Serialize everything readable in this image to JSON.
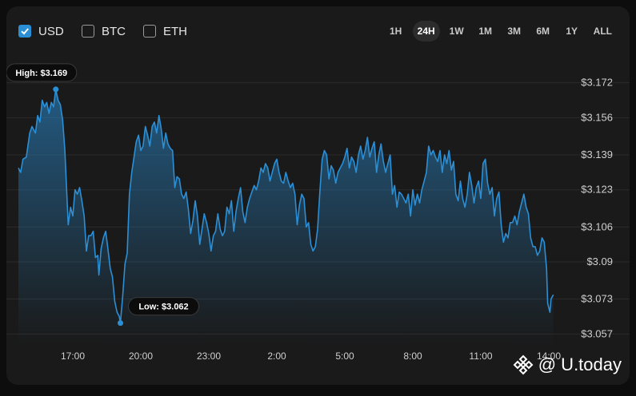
{
  "currency_toggles": [
    {
      "label": "USD",
      "checked": true
    },
    {
      "label": "BTC",
      "checked": false
    },
    {
      "label": "ETH",
      "checked": false
    }
  ],
  "timeframes": [
    "1H",
    "24H",
    "1W",
    "1M",
    "3M",
    "6M",
    "1Y",
    "ALL"
  ],
  "active_timeframe": "24H",
  "watermark": {
    "text": "@ U.today",
    "icon": "binance-logo-icon"
  },
  "colors": {
    "line": "#2b8fd6",
    "checkbox": "#2b8fd6"
  },
  "chart_data": {
    "type": "area",
    "ylim": [
      3.052,
      3.177
    ],
    "y_ticks": [
      "3.172",
      "3.156",
      "3.139",
      "3.123",
      "3.106",
      "3.09",
      "3.073",
      "3.057"
    ],
    "y_tick_values": [
      3.172,
      3.156,
      3.139,
      3.123,
      3.106,
      3.09,
      3.073,
      3.057
    ],
    "y_tick_prefix": "$",
    "x_ticks": [
      "17:00",
      "20:00",
      "23:00",
      "2:00",
      "5:00",
      "8:00",
      "11:00",
      "14:00"
    ],
    "x_tick_hours": [
      2.4,
      5.4,
      8.4,
      11.4,
      14.4,
      17.4,
      20.4,
      23.4
    ],
    "xlim": [
      0,
      24
    ],
    "series": [
      {
        "values": [
          [
            0.0,
            3.133
          ],
          [
            0.1,
            3.131
          ],
          [
            0.2,
            3.137
          ],
          [
            0.35,
            3.138
          ],
          [
            0.5,
            3.149
          ],
          [
            0.6,
            3.152
          ],
          [
            0.75,
            3.149
          ],
          [
            0.85,
            3.157
          ],
          [
            0.95,
            3.154
          ],
          [
            1.05,
            3.164
          ],
          [
            1.15,
            3.161
          ],
          [
            1.25,
            3.163
          ],
          [
            1.35,
            3.158
          ],
          [
            1.45,
            3.163
          ],
          [
            1.55,
            3.161
          ],
          [
            1.65,
            3.169
          ],
          [
            1.75,
            3.164
          ],
          [
            1.85,
            3.162
          ],
          [
            1.95,
            3.155
          ],
          [
            2.05,
            3.141
          ],
          [
            2.15,
            3.118
          ],
          [
            2.2,
            3.107
          ],
          [
            2.3,
            3.115
          ],
          [
            2.4,
            3.111
          ],
          [
            2.5,
            3.123
          ],
          [
            2.6,
            3.121
          ],
          [
            2.7,
            3.124
          ],
          [
            2.8,
            3.118
          ],
          [
            2.9,
            3.111
          ],
          [
            3.0,
            3.095
          ],
          [
            3.1,
            3.102
          ],
          [
            3.2,
            3.102
          ],
          [
            3.3,
            3.104
          ],
          [
            3.4,
            3.092
          ],
          [
            3.5,
            3.093
          ],
          [
            3.55,
            3.084
          ],
          [
            3.65,
            3.096
          ],
          [
            3.75,
            3.101
          ],
          [
            3.85,
            3.104
          ],
          [
            3.95,
            3.096
          ],
          [
            4.05,
            3.087
          ],
          [
            4.15,
            3.083
          ],
          [
            4.25,
            3.072
          ],
          [
            4.35,
            3.067
          ],
          [
            4.45,
            3.065
          ],
          [
            4.5,
            3.062
          ],
          [
            4.6,
            3.074
          ],
          [
            4.7,
            3.089
          ],
          [
            4.8,
            3.094
          ],
          [
            4.9,
            3.121
          ],
          [
            5.0,
            3.131
          ],
          [
            5.1,
            3.138
          ],
          [
            5.2,
            3.145
          ],
          [
            5.3,
            3.148
          ],
          [
            5.4,
            3.141
          ],
          [
            5.5,
            3.143
          ],
          [
            5.6,
            3.152
          ],
          [
            5.7,
            3.148
          ],
          [
            5.8,
            3.143
          ],
          [
            5.9,
            3.152
          ],
          [
            6.0,
            3.154
          ],
          [
            6.1,
            3.149
          ],
          [
            6.2,
            3.157
          ],
          [
            6.3,
            3.151
          ],
          [
            6.4,
            3.142
          ],
          [
            6.5,
            3.149
          ],
          [
            6.6,
            3.144
          ],
          [
            6.7,
            3.142
          ],
          [
            6.8,
            3.141
          ],
          [
            6.9,
            3.124
          ],
          [
            7.0,
            3.129
          ],
          [
            7.1,
            3.128
          ],
          [
            7.2,
            3.121
          ],
          [
            7.3,
            3.119
          ],
          [
            7.4,
            3.122
          ],
          [
            7.5,
            3.114
          ],
          [
            7.6,
            3.103
          ],
          [
            7.7,
            3.109
          ],
          [
            7.8,
            3.118
          ],
          [
            7.9,
            3.111
          ],
          [
            8.0,
            3.098
          ],
          [
            8.1,
            3.105
          ],
          [
            8.2,
            3.112
          ],
          [
            8.3,
            3.108
          ],
          [
            8.4,
            3.103
          ],
          [
            8.5,
            3.095
          ],
          [
            8.6,
            3.102
          ],
          [
            8.7,
            3.104
          ],
          [
            8.8,
            3.112
          ],
          [
            8.9,
            3.105
          ],
          [
            9.0,
            3.102
          ],
          [
            9.1,
            3.104
          ],
          [
            9.2,
            3.115
          ],
          [
            9.3,
            3.112
          ],
          [
            9.4,
            3.118
          ],
          [
            9.5,
            3.104
          ],
          [
            9.6,
            3.113
          ],
          [
            9.7,
            3.119
          ],
          [
            9.8,
            3.124
          ],
          [
            9.9,
            3.113
          ],
          [
            10.0,
            3.108
          ],
          [
            10.1,
            3.115
          ],
          [
            10.2,
            3.119
          ],
          [
            10.3,
            3.122
          ],
          [
            10.4,
            3.125
          ],
          [
            10.5,
            3.123
          ],
          [
            10.6,
            3.127
          ],
          [
            10.7,
            3.133
          ],
          [
            10.8,
            3.131
          ],
          [
            10.9,
            3.135
          ],
          [
            11.0,
            3.133
          ],
          [
            11.1,
            3.127
          ],
          [
            11.2,
            3.131
          ],
          [
            11.3,
            3.135
          ],
          [
            11.4,
            3.137
          ],
          [
            11.5,
            3.131
          ],
          [
            11.6,
            3.127
          ],
          [
            11.7,
            3.126
          ],
          [
            11.8,
            3.131
          ],
          [
            11.9,
            3.127
          ],
          [
            12.0,
            3.124
          ],
          [
            12.1,
            3.126
          ],
          [
            12.2,
            3.121
          ],
          [
            12.3,
            3.107
          ],
          [
            12.4,
            3.116
          ],
          [
            12.5,
            3.121
          ],
          [
            12.6,
            3.119
          ],
          [
            12.7,
            3.106
          ],
          [
            12.8,
            3.108
          ],
          [
            12.9,
            3.098
          ],
          [
            13.0,
            3.095
          ],
          [
            13.1,
            3.097
          ],
          [
            13.2,
            3.105
          ],
          [
            13.3,
            3.122
          ],
          [
            13.4,
            3.137
          ],
          [
            13.5,
            3.141
          ],
          [
            13.6,
            3.139
          ],
          [
            13.7,
            3.128
          ],
          [
            13.8,
            3.134
          ],
          [
            13.9,
            3.132
          ],
          [
            14.0,
            3.126
          ],
          [
            14.1,
            3.131
          ],
          [
            14.2,
            3.133
          ],
          [
            14.3,
            3.135
          ],
          [
            14.4,
            3.138
          ],
          [
            14.5,
            3.142
          ],
          [
            14.6,
            3.133
          ],
          [
            14.7,
            3.138
          ],
          [
            14.8,
            3.136
          ],
          [
            14.9,
            3.131
          ],
          [
            15.0,
            3.139
          ],
          [
            15.1,
            3.143
          ],
          [
            15.2,
            3.137
          ],
          [
            15.3,
            3.141
          ],
          [
            15.4,
            3.147
          ],
          [
            15.5,
            3.138
          ],
          [
            15.6,
            3.142
          ],
          [
            15.7,
            3.145
          ],
          [
            15.8,
            3.131
          ],
          [
            15.9,
            3.139
          ],
          [
            16.0,
            3.144
          ],
          [
            16.1,
            3.136
          ],
          [
            16.2,
            3.131
          ],
          [
            16.3,
            3.135
          ],
          [
            16.4,
            3.139
          ],
          [
            16.5,
            3.121
          ],
          [
            16.6,
            3.125
          ],
          [
            16.7,
            3.115
          ],
          [
            16.8,
            3.122
          ],
          [
            16.9,
            3.121
          ],
          [
            17.0,
            3.119
          ],
          [
            17.1,
            3.117
          ],
          [
            17.2,
            3.121
          ],
          [
            17.3,
            3.111
          ],
          [
            17.4,
            3.123
          ],
          [
            17.5,
            3.116
          ],
          [
            17.6,
            3.121
          ],
          [
            17.7,
            3.117
          ],
          [
            17.8,
            3.123
          ],
          [
            17.9,
            3.127
          ],
          [
            18.0,
            3.131
          ],
          [
            18.1,
            3.143
          ],
          [
            18.2,
            3.139
          ],
          [
            18.3,
            3.141
          ],
          [
            18.4,
            3.138
          ],
          [
            18.5,
            3.136
          ],
          [
            18.6,
            3.141
          ],
          [
            18.7,
            3.131
          ],
          [
            18.8,
            3.139
          ],
          [
            18.9,
            3.135
          ],
          [
            19.0,
            3.141
          ],
          [
            19.1,
            3.132
          ],
          [
            19.2,
            3.136
          ],
          [
            19.3,
            3.121
          ],
          [
            19.4,
            3.118
          ],
          [
            19.5,
            3.127
          ],
          [
            19.6,
            3.119
          ],
          [
            19.7,
            3.115
          ],
          [
            19.8,
            3.121
          ],
          [
            19.9,
            3.131
          ],
          [
            20.0,
            3.125
          ],
          [
            20.1,
            3.117
          ],
          [
            20.2,
            3.124
          ],
          [
            20.3,
            3.127
          ],
          [
            20.4,
            3.119
          ],
          [
            20.5,
            3.135
          ],
          [
            20.6,
            3.137
          ],
          [
            20.7,
            3.126
          ],
          [
            20.8,
            3.121
          ],
          [
            20.9,
            3.124
          ],
          [
            21.0,
            3.111
          ],
          [
            21.1,
            3.119
          ],
          [
            21.2,
            3.122
          ],
          [
            21.3,
            3.107
          ],
          [
            21.4,
            3.099
          ],
          [
            21.5,
            3.103
          ],
          [
            21.6,
            3.101
          ],
          [
            21.7,
            3.108
          ],
          [
            21.8,
            3.108
          ],
          [
            21.9,
            3.111
          ],
          [
            22.0,
            3.107
          ],
          [
            22.1,
            3.113
          ],
          [
            22.2,
            3.117
          ],
          [
            22.3,
            3.121
          ],
          [
            22.4,
            3.115
          ],
          [
            22.5,
            3.112
          ],
          [
            22.6,
            3.101
          ],
          [
            22.7,
            3.097
          ],
          [
            22.8,
            3.097
          ],
          [
            22.9,
            3.093
          ],
          [
            23.0,
            3.095
          ],
          [
            23.1,
            3.101
          ],
          [
            23.2,
            3.099
          ],
          [
            23.3,
            3.087
          ],
          [
            23.35,
            3.071
          ],
          [
            23.45,
            3.067
          ],
          [
            23.5,
            3.073
          ],
          [
            23.6,
            3.075
          ]
        ]
      }
    ],
    "annotations": [
      {
        "label": "High: $3.169",
        "x": 1.65,
        "y": 3.169
      },
      {
        "label": "Low: $3.062",
        "x": 4.5,
        "y": 3.062
      }
    ]
  }
}
